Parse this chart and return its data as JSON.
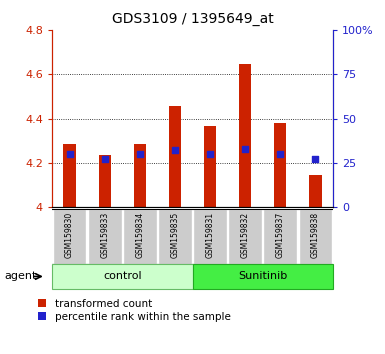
{
  "title": "GDS3109 / 1395649_at",
  "samples": [
    "GSM159830",
    "GSM159833",
    "GSM159834",
    "GSM159835",
    "GSM159831",
    "GSM159832",
    "GSM159837",
    "GSM159838"
  ],
  "transformed_counts": [
    4.285,
    4.235,
    4.285,
    4.455,
    4.365,
    4.645,
    4.38,
    4.145
  ],
  "percentile_ranks": [
    30,
    27,
    30,
    32,
    30,
    33,
    30,
    27
  ],
  "bar_bottom": 4.0,
  "ylim_left": [
    4.0,
    4.8
  ],
  "ylim_right": [
    0,
    100
  ],
  "yticks_left": [
    4.0,
    4.2,
    4.4,
    4.6,
    4.8
  ],
  "yticks_right": [
    0,
    25,
    50,
    75,
    100
  ],
  "ytick_labels_left": [
    "4",
    "4.2",
    "4.4",
    "4.6",
    "4.8"
  ],
  "ytick_labels_right": [
    "0",
    "25",
    "50",
    "75",
    "100%"
  ],
  "bar_color": "#cc2200",
  "dot_color": "#2222cc",
  "control_bg": "#ccffcc",
  "sunitinib_bg": "#44ee44",
  "sample_bg": "#cccccc",
  "agent_label": "agent",
  "control_label": "control",
  "sunitinib_label": "Sunitinib",
  "legend_red": "transformed count",
  "legend_blue": "percentile rank within the sample",
  "dot_size": 22,
  "bar_width": 0.35,
  "grid_yticks": [
    4.2,
    4.4,
    4.6
  ]
}
